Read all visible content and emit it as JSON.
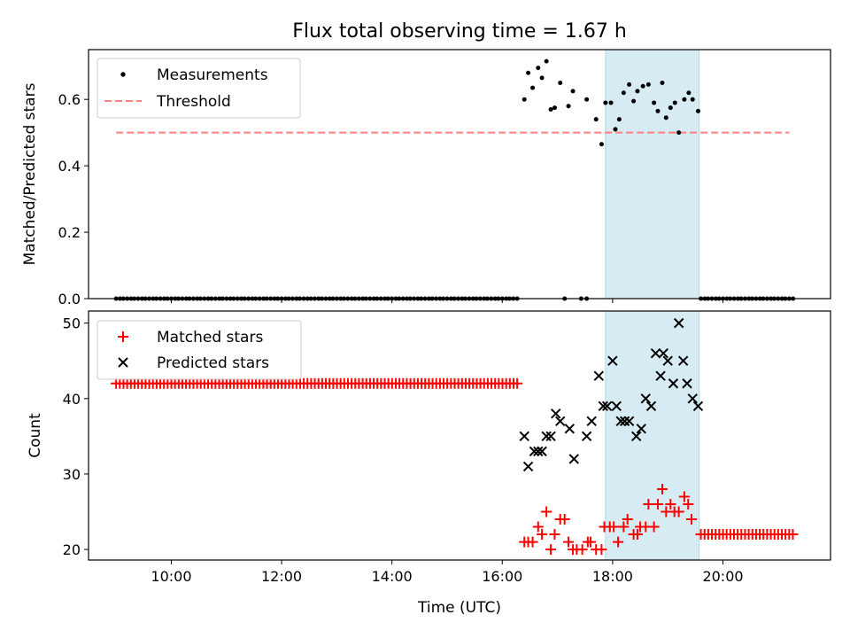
{
  "title": "Flux total observing time = 1.67 h",
  "colors": {
    "measurement": "#000000",
    "threshold": "#ff7f7f",
    "matched": "#ff0000",
    "predicted": "#000000",
    "shade": "#add8e6"
  },
  "chart_data": [
    {
      "type": "scatter",
      "ylabel": "Matched/Predicted stars",
      "xlim": [
        8.5,
        21.95
      ],
      "ylim": [
        0,
        0.75
      ],
      "yticks": [
        0.0,
        0.2,
        0.4,
        0.6
      ],
      "ytick_labels": [
        "0.0",
        "0.2",
        "0.4",
        "0.6"
      ],
      "legend": {
        "placement": "top-left",
        "entries": [
          "Measurements",
          "Threshold"
        ]
      },
      "shaded_span": [
        17.87,
        19.57
      ],
      "threshold": {
        "name": "Threshold",
        "value": 0.5,
        "x_range": [
          9.0,
          21.2
        ]
      },
      "series": [
        {
          "name": "Measurements",
          "zero_points": [
            9.0,
            9.07,
            9.13,
            9.2,
            9.27,
            9.33,
            9.4,
            9.47,
            9.53,
            9.6,
            9.67,
            9.73,
            9.8,
            9.87,
            9.93,
            10.0,
            10.07,
            10.13,
            10.2,
            10.27,
            10.33,
            10.4,
            10.47,
            10.53,
            10.6,
            10.67,
            10.73,
            10.8,
            10.87,
            10.93,
            11.0,
            11.07,
            11.13,
            11.2,
            11.27,
            11.33,
            11.4,
            11.47,
            11.53,
            11.6,
            11.67,
            11.73,
            11.8,
            11.87,
            11.93,
            12.0,
            12.07,
            12.13,
            12.2,
            12.27,
            12.33,
            12.4,
            12.47,
            12.53,
            12.6,
            12.67,
            12.73,
            12.8,
            12.87,
            12.93,
            13.0,
            13.07,
            13.13,
            13.2,
            13.27,
            13.33,
            13.4,
            13.47,
            13.53,
            13.6,
            13.67,
            13.73,
            13.8,
            13.87,
            13.93,
            14.0,
            14.07,
            14.13,
            14.2,
            14.27,
            14.33,
            14.4,
            14.47,
            14.53,
            14.6,
            14.67,
            14.73,
            14.8,
            14.87,
            14.93,
            15.0,
            15.07,
            15.13,
            15.2,
            15.27,
            15.33,
            15.4,
            15.47,
            15.53,
            15.6,
            15.67,
            15.73,
            15.8,
            15.87,
            15.93,
            16.0,
            16.07,
            16.13,
            16.2,
            16.27,
            17.13,
            17.43,
            17.53,
            19.6,
            19.67,
            19.73,
            19.8,
            19.87,
            19.93,
            20.0,
            20.07,
            20.13,
            20.2,
            20.27,
            20.33,
            20.4,
            20.47,
            20.53,
            20.6,
            20.67,
            20.73,
            20.8,
            20.87,
            20.93,
            21.0,
            21.07,
            21.13,
            21.2,
            21.27
          ],
          "points": [
            [
              16.4,
              0.6
            ],
            [
              16.47,
              0.68
            ],
            [
              16.55,
              0.635
            ],
            [
              16.65,
              0.695
            ],
            [
              16.72,
              0.665
            ],
            [
              16.8,
              0.715
            ],
            [
              16.88,
              0.57
            ],
            [
              16.95,
              0.575
            ],
            [
              17.05,
              0.65
            ],
            [
              17.2,
              0.58
            ],
            [
              17.28,
              0.625
            ],
            [
              17.53,
              0.6
            ],
            [
              17.7,
              0.54
            ],
            [
              17.8,
              0.465
            ],
            [
              17.87,
              0.59
            ],
            [
              17.97,
              0.59
            ],
            [
              18.05,
              0.51
            ],
            [
              18.12,
              0.54
            ],
            [
              18.2,
              0.62
            ],
            [
              18.3,
              0.645
            ],
            [
              18.38,
              0.595
            ],
            [
              18.45,
              0.625
            ],
            [
              18.55,
              0.64
            ],
            [
              18.65,
              0.645
            ],
            [
              18.75,
              0.59
            ],
            [
              18.82,
              0.565
            ],
            [
              18.9,
              0.65
            ],
            [
              18.97,
              0.545
            ],
            [
              19.05,
              0.575
            ],
            [
              19.13,
              0.59
            ],
            [
              19.2,
              0.5
            ],
            [
              19.3,
              0.6
            ],
            [
              19.38,
              0.62
            ],
            [
              19.45,
              0.6
            ],
            [
              19.55,
              0.565
            ]
          ]
        }
      ]
    },
    {
      "type": "scatter",
      "xlabel": "Time (UTC)",
      "ylabel": "Count",
      "xlim": [
        8.5,
        21.95
      ],
      "ylim": [
        18.6,
        51.6
      ],
      "xticks": [
        10,
        12,
        14,
        16,
        18,
        20
      ],
      "xtick_labels": [
        "10:00",
        "12:00",
        "14:00",
        "16:00",
        "18:00",
        "20:00"
      ],
      "yticks": [
        20,
        30,
        40,
        50
      ],
      "ytick_labels": [
        "20",
        "30",
        "40",
        "50"
      ],
      "legend": {
        "placement": "top-left",
        "entries": [
          "Matched stars",
          "Predicted stars"
        ]
      },
      "shaded_span": [
        17.87,
        19.57
      ],
      "series": [
        {
          "name": "Matched stars",
          "constant_runs": [
            {
              "from": 9.0,
              "to": 16.33,
              "step": 0.0667,
              "value": 42
            },
            {
              "from": 19.6,
              "to": 21.27,
              "step": 0.0667,
              "value": 22
            }
          ],
          "points": [
            [
              16.4,
              21
            ],
            [
              16.47,
              21
            ],
            [
              16.55,
              21
            ],
            [
              16.65,
              23
            ],
            [
              16.72,
              22
            ],
            [
              16.8,
              25
            ],
            [
              16.88,
              20
            ],
            [
              16.95,
              22
            ],
            [
              17.05,
              24
            ],
            [
              17.13,
              24
            ],
            [
              17.2,
              21
            ],
            [
              17.28,
              20
            ],
            [
              17.35,
              20
            ],
            [
              17.45,
              20
            ],
            [
              17.55,
              21
            ],
            [
              17.6,
              21
            ],
            [
              17.7,
              20
            ],
            [
              17.8,
              20
            ],
            [
              17.85,
              23
            ],
            [
              17.95,
              23
            ],
            [
              18.02,
              23
            ],
            [
              18.1,
              21
            ],
            [
              18.2,
              23
            ],
            [
              18.27,
              24
            ],
            [
              18.38,
              22
            ],
            [
              18.45,
              22
            ],
            [
              18.5,
              23
            ],
            [
              18.6,
              23
            ],
            [
              18.65,
              26
            ],
            [
              18.75,
              23
            ],
            [
              18.82,
              26
            ],
            [
              18.9,
              28
            ],
            [
              18.97,
              25
            ],
            [
              19.05,
              26
            ],
            [
              19.12,
              25
            ],
            [
              19.2,
              25
            ],
            [
              19.3,
              27
            ],
            [
              19.37,
              26
            ],
            [
              19.43,
              24
            ]
          ]
        },
        {
          "name": "Predicted stars",
          "points": [
            [
              16.4,
              35
            ],
            [
              16.47,
              31
            ],
            [
              16.58,
              33
            ],
            [
              16.65,
              33
            ],
            [
              16.72,
              33
            ],
            [
              16.8,
              35
            ],
            [
              16.88,
              35
            ],
            [
              16.97,
              38
            ],
            [
              17.05,
              37
            ],
            [
              17.22,
              36
            ],
            [
              17.3,
              32
            ],
            [
              17.53,
              35
            ],
            [
              17.62,
              37
            ],
            [
              17.75,
              43
            ],
            [
              17.83,
              39
            ],
            [
              17.9,
              39
            ],
            [
              18.0,
              45
            ],
            [
              18.07,
              39
            ],
            [
              18.15,
              37
            ],
            [
              18.22,
              37
            ],
            [
              18.3,
              37
            ],
            [
              18.43,
              35
            ],
            [
              18.52,
              36
            ],
            [
              18.6,
              40
            ],
            [
              18.7,
              39
            ],
            [
              18.78,
              46
            ],
            [
              18.87,
              43
            ],
            [
              18.92,
              46
            ],
            [
              19.0,
              45
            ],
            [
              19.1,
              42
            ],
            [
              19.2,
              50
            ],
            [
              19.28,
              45
            ],
            [
              19.35,
              42
            ],
            [
              19.45,
              40
            ],
            [
              19.55,
              39
            ]
          ]
        }
      ]
    }
  ]
}
